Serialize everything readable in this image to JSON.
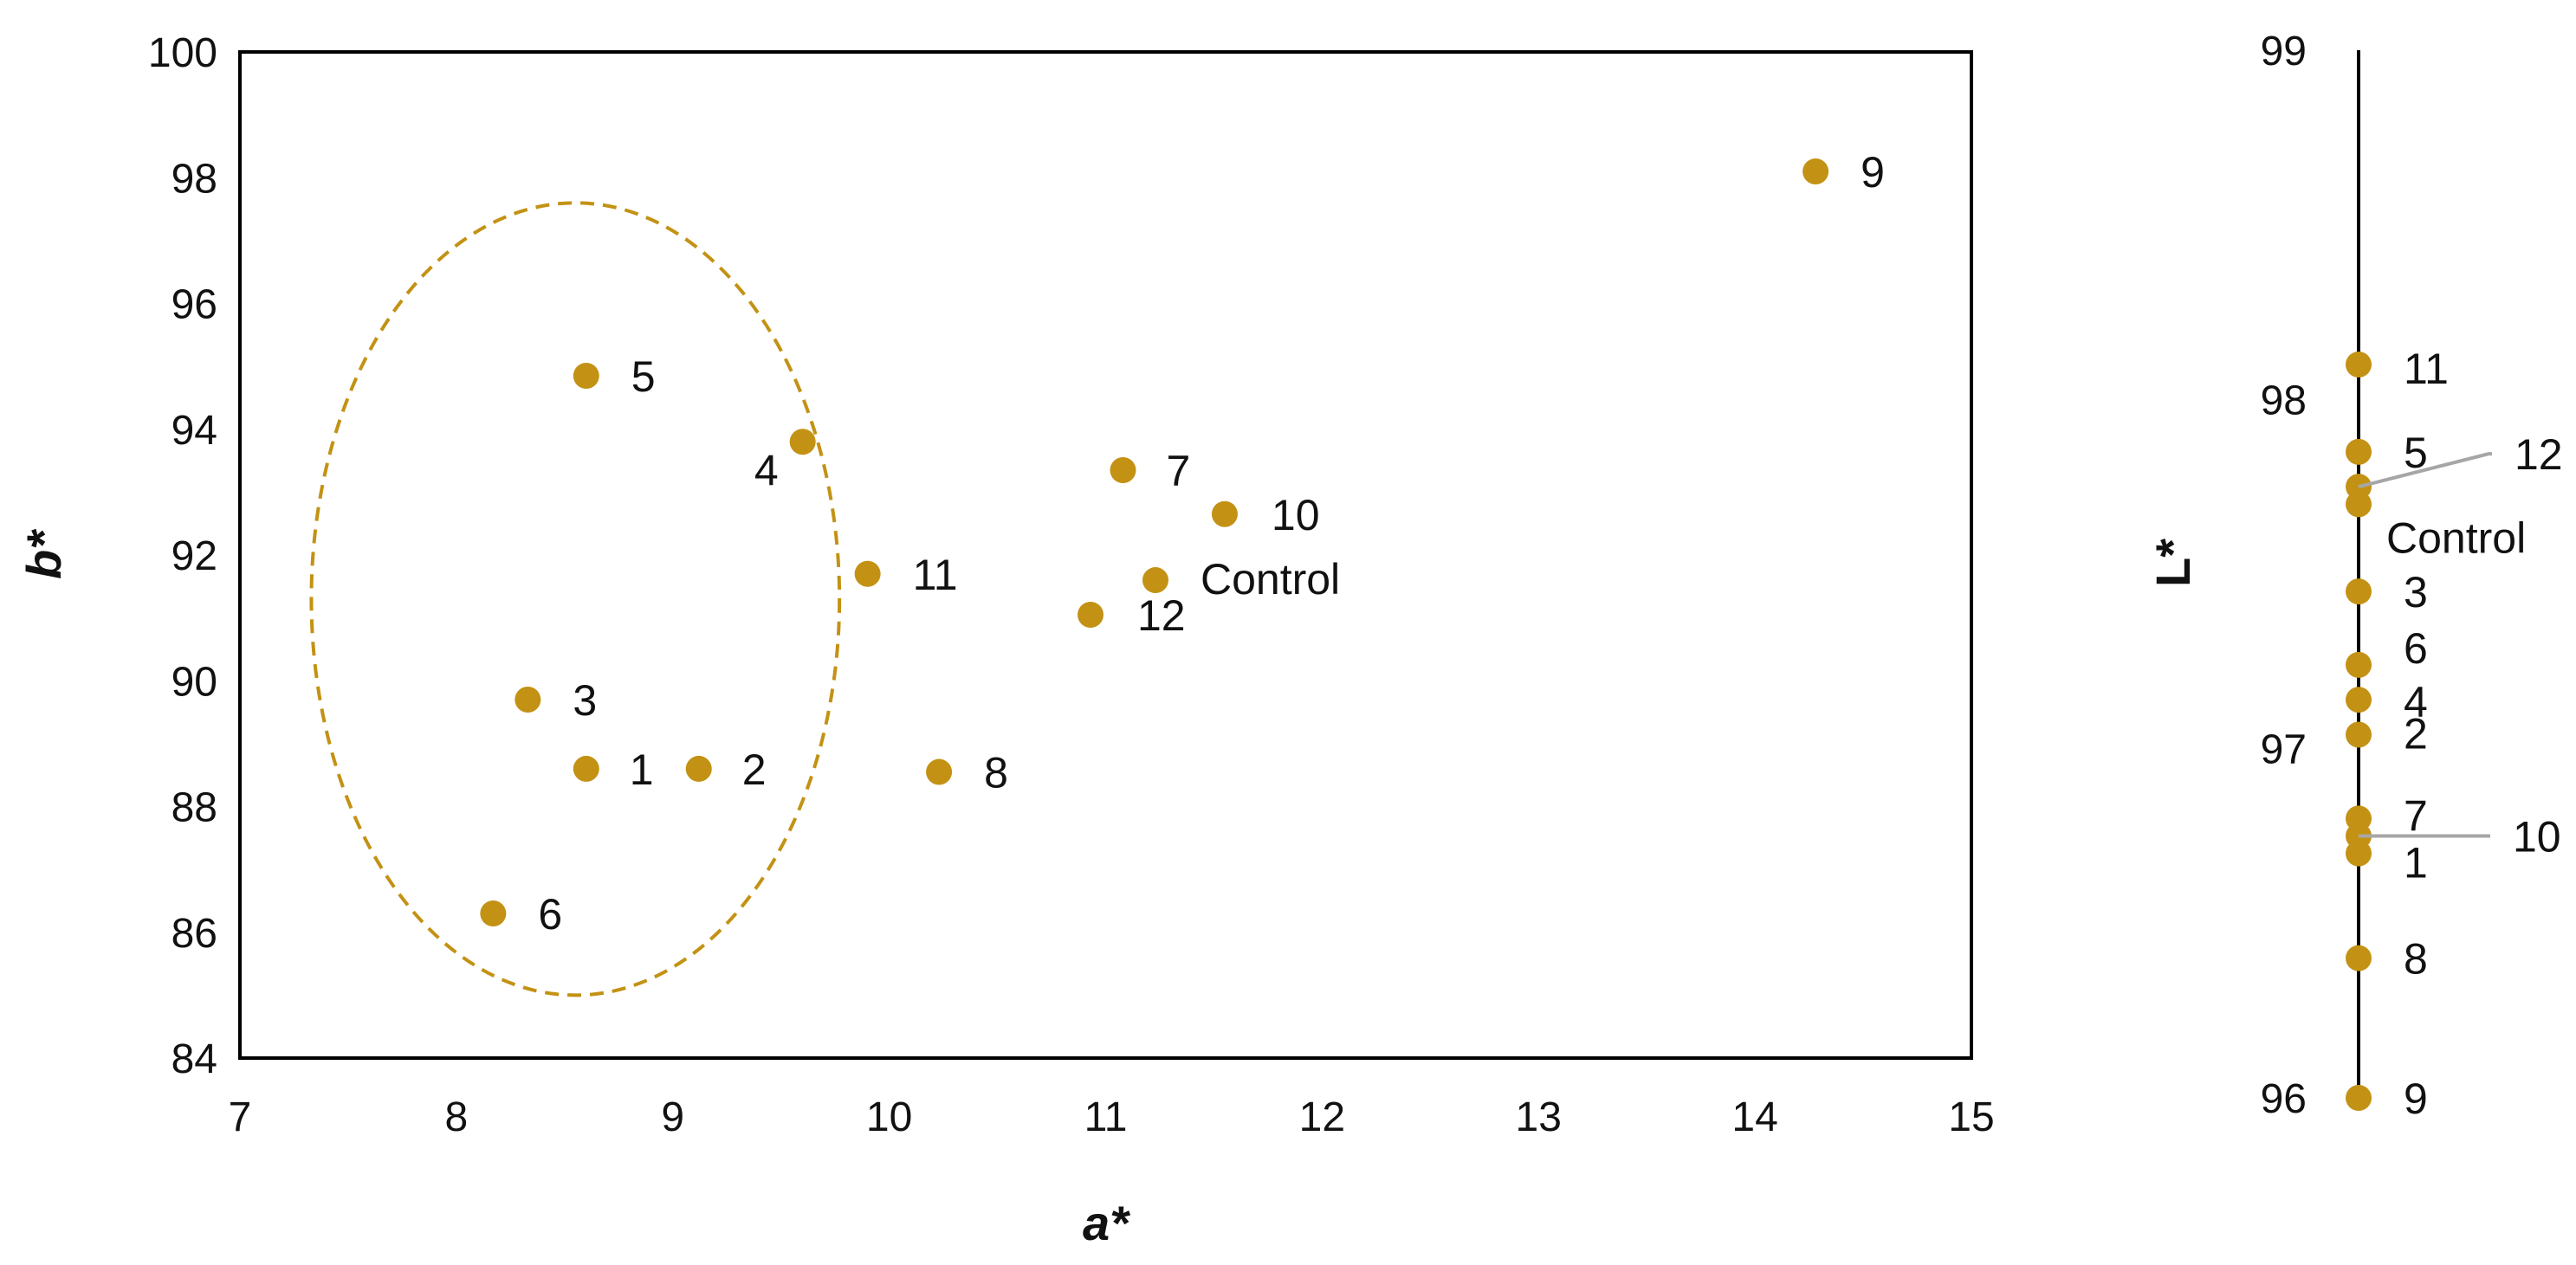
{
  "colors": {
    "marker": "#C39214",
    "axis": "#000000",
    "leader": "#A6A6A6",
    "text": "#111111"
  },
  "chart_data": [
    {
      "type": "scatter",
      "title": "",
      "xlabel": "a*",
      "ylabel": "b*",
      "xlim": [
        7,
        15
      ],
      "ylim": [
        84,
        100
      ],
      "xticks": [
        7,
        8,
        9,
        10,
        11,
        12,
        13,
        14,
        15
      ],
      "yticks": [
        84,
        86,
        88,
        90,
        92,
        94,
        96,
        98,
        100
      ],
      "grid": false,
      "legend": "none",
      "points": [
        {
          "label": "1",
          "x": 8.6,
          "y": 88.6
        },
        {
          "label": "2",
          "x": 9.12,
          "y": 88.6
        },
        {
          "label": "3",
          "x": 8.33,
          "y": 89.7
        },
        {
          "label": "4",
          "x": 9.6,
          "y": 93.8
        },
        {
          "label": "5",
          "x": 8.6,
          "y": 94.85
        },
        {
          "label": "6",
          "x": 8.17,
          "y": 86.3
        },
        {
          "label": "7",
          "x": 11.08,
          "y": 93.35
        },
        {
          "label": "8",
          "x": 10.23,
          "y": 88.55
        },
        {
          "label": "9",
          "x": 14.28,
          "y": 98.1
        },
        {
          "label": "10",
          "x": 11.55,
          "y": 92.65
        },
        {
          "label": "11",
          "x": 9.9,
          "y": 91.7
        },
        {
          "label": "12",
          "x": 10.93,
          "y": 91.05
        },
        {
          "label": "Control",
          "x": 11.23,
          "y": 91.6
        }
      ],
      "annotations": [
        {
          "type": "dashed-ellipse",
          "center": [
            8.55,
            91.3
          ],
          "rx": 1.22,
          "ry": 6.3,
          "note": "groups samples 1–6"
        }
      ]
    },
    {
      "type": "scatter",
      "title": "",
      "xlabel": "",
      "ylabel": "L*",
      "ylim": [
        96,
        99
      ],
      "yticks": [
        96,
        97,
        98,
        99
      ],
      "grid": false,
      "legend": "none",
      "points": [
        {
          "label": "11",
          "y": 98.1
        },
        {
          "label": "5",
          "y": 97.85
        },
        {
          "label": "12",
          "y": 97.75
        },
        {
          "label": "Control",
          "y": 97.7
        },
        {
          "label": "3",
          "y": 97.45
        },
        {
          "label": "6",
          "y": 97.24
        },
        {
          "label": "4",
          "y": 97.14
        },
        {
          "label": "2",
          "y": 97.04
        },
        {
          "label": "7",
          "y": 96.8
        },
        {
          "label": "10",
          "y": 96.75
        },
        {
          "label": "1",
          "y": 96.7
        },
        {
          "label": "8",
          "y": 96.4
        },
        {
          "label": "9",
          "y": 96.0
        }
      ]
    }
  ]
}
